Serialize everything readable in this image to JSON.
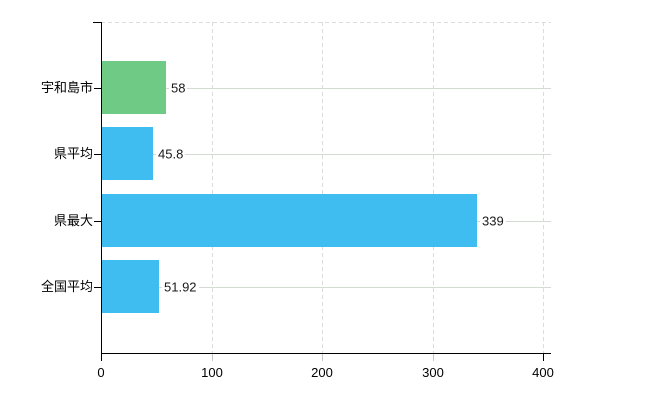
{
  "chart_data": {
    "type": "bar",
    "orientation": "horizontal",
    "title": "",
    "xlabel": "",
    "ylabel": "",
    "categories": [
      "宇和島市",
      "県平均",
      "県最大",
      "全国平均"
    ],
    "values": [
      58,
      45.8,
      339,
      51.92
    ],
    "value_labels": [
      "58",
      "45.8",
      "339",
      "51.92"
    ],
    "bar_colors": [
      "#6fca86",
      "#3fbdf0",
      "#3fbdf0",
      "#3fbdf0"
    ],
    "x_ticks": [
      "0",
      "100",
      "200",
      "300",
      "400"
    ],
    "x_tick_values": [
      0,
      100,
      200,
      300,
      400
    ],
    "xlim": [
      0,
      400
    ],
    "grid": {
      "vertical": "dashed",
      "horizontal": "solid"
    },
    "legend": "none"
  },
  "colors": {
    "background": "#ffffff",
    "axis": "#000000",
    "grid_vertical": "#dcdcdc",
    "grid_horizontal": "#d3dbd3",
    "value_text": "#1a1a1a",
    "category_text": "#000000",
    "minor_tick": "#c8c8c8"
  }
}
